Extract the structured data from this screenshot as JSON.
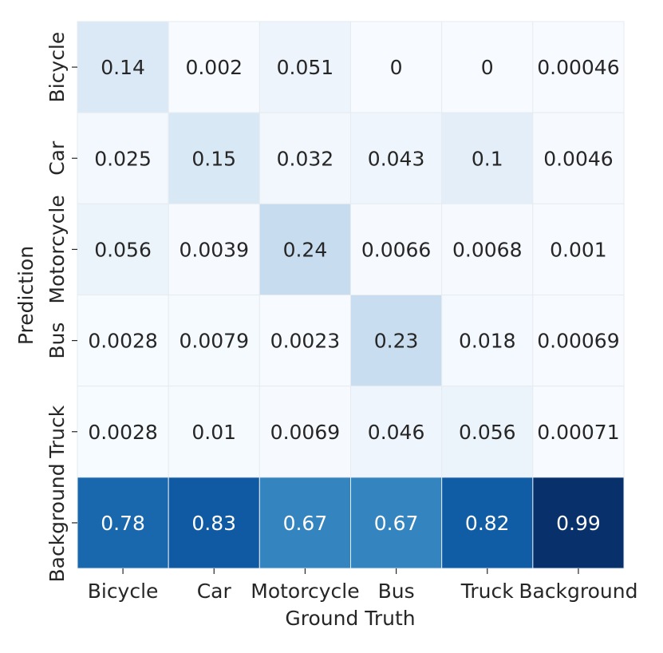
{
  "chart_data": {
    "type": "heatmap",
    "xlabel": "Ground Truth",
    "ylabel": "Prediction",
    "x_categories": [
      "Bicycle",
      "Car",
      "Motorcycle",
      "Bus",
      "Truck",
      "Background"
    ],
    "y_categories": [
      "Bicycle",
      "Car",
      "Motorcycle",
      "Bus",
      "Truck",
      "Background"
    ],
    "values": [
      [
        0.14,
        0.002,
        0.051,
        0,
        0,
        0.00046
      ],
      [
        0.025,
        0.15,
        0.032,
        0.043,
        0.1,
        0.0046
      ],
      [
        0.056,
        0.0039,
        0.24,
        0.0066,
        0.0068,
        0.001
      ],
      [
        0.0028,
        0.0079,
        0.0023,
        0.23,
        0.018,
        0.00069
      ],
      [
        0.0028,
        0.01,
        0.0069,
        0.046,
        0.056,
        0.00071
      ],
      [
        0.78,
        0.83,
        0.67,
        0.67,
        0.82,
        0.99
      ]
    ],
    "value_labels": [
      [
        "0.14",
        "0.002",
        "0.051",
        "0",
        "0",
        "0.00046"
      ],
      [
        "0.025",
        "0.15",
        "0.032",
        "0.043",
        "0.1",
        "0.0046"
      ],
      [
        "0.056",
        "0.0039",
        "0.24",
        "0.0066",
        "0.0068",
        "0.001"
      ],
      [
        "0.0028",
        "0.0079",
        "0.0023",
        "0.23",
        "0.018",
        "0.00069"
      ],
      [
        "0.0028",
        "0.01",
        "0.0069",
        "0.046",
        "0.056",
        "0.00071"
      ],
      [
        "0.78",
        "0.83",
        "0.67",
        "0.67",
        "0.82",
        "0.99"
      ]
    ],
    "colormap": "Blues",
    "vmin": 0,
    "vmax": 0.99,
    "colorbar": false,
    "cell_borders": true
  }
}
